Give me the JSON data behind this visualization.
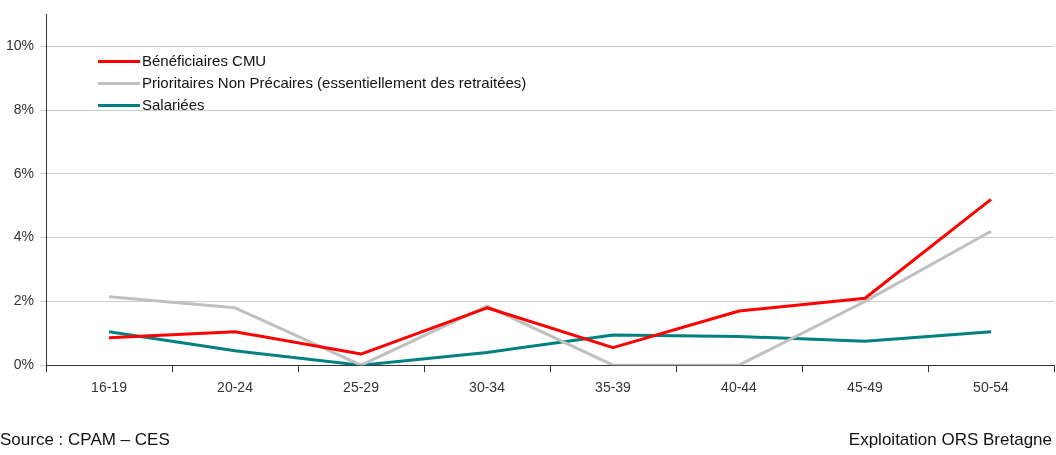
{
  "chart_data": {
    "type": "line",
    "categories": [
      "16-19",
      "20-24",
      "25-29",
      "30-34",
      "35-39",
      "40-44",
      "45-49",
      "50-54"
    ],
    "series": [
      {
        "name": "Bénéficiaires CMU",
        "color": "#ff0000",
        "values": [
          0.86,
          1.05,
          0.35,
          1.8,
          0.55,
          1.7,
          2.1,
          5.2
        ]
      },
      {
        "name": "Prioritaires Non Précaires (essentiellement des retraitées)",
        "color": "#c0c0c0",
        "values": [
          2.15,
          1.8,
          0,
          1.85,
          0,
          0,
          2.0,
          4.2
        ]
      },
      {
        "name": "Salariées",
        "color": "#008080",
        "values": [
          1.05,
          0.45,
          0,
          0.4,
          0.95,
          0.9,
          0.75,
          1.05
        ]
      }
    ],
    "ylim": [
      0,
      11
    ],
    "yticks": [
      {
        "value": 0,
        "label": "0%"
      },
      {
        "value": 2,
        "label": "2%"
      },
      {
        "value": 4,
        "label": "4%"
      },
      {
        "value": 6,
        "label": "6%"
      },
      {
        "value": 8,
        "label": "8%"
      },
      {
        "value": 10,
        "label": "10%"
      }
    ],
    "grid": "y",
    "legend": "top left",
    "marker": "none",
    "line_style": "solid",
    "annotations": [
      "Source : CPAM – CES",
      "Exploitation ORS Bretagne"
    ]
  }
}
